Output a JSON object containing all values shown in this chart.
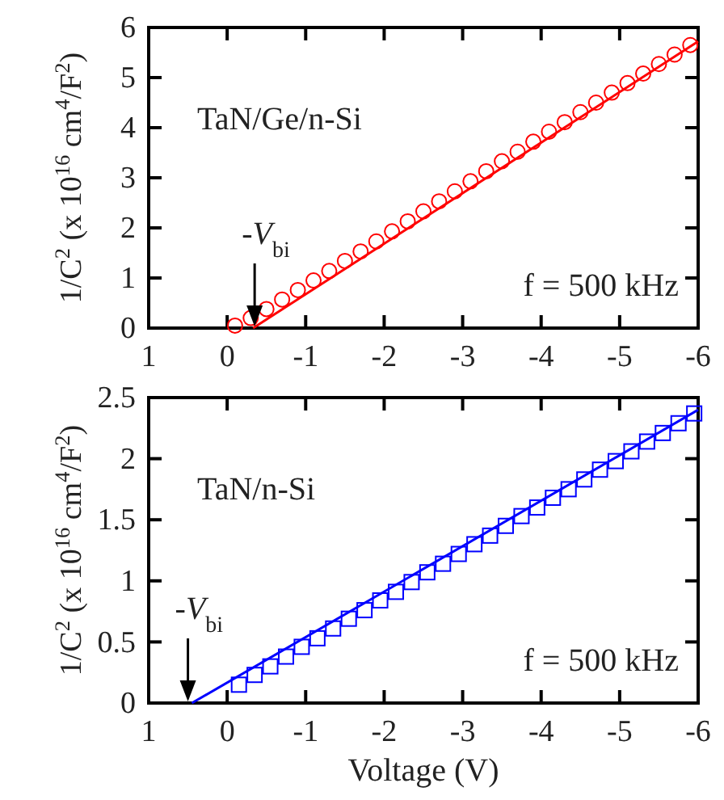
{
  "chart_data": [
    {
      "type": "scatter",
      "ylabel": "1/C$^{2}$ (x 10$^{16}$ cm$^{4}$/F$^{2}$)",
      "xlim": [
        1,
        -6
      ],
      "xticks": [
        1,
        0,
        -1,
        -2,
        -3,
        -4,
        -5,
        -6
      ],
      "ylim": [
        0,
        6
      ],
      "yticks": [
        0,
        1,
        2,
        3,
        4,
        5,
        6
      ],
      "grid": false,
      "annotations": [
        "TaN/Ge/n-Si",
        "f = 500 kHz",
        {
          "text": "-V$_{bi}$",
          "x": -0.35,
          "y": 0
        }
      ],
      "series": [
        {
          "type": "scatter",
          "marker": "circle",
          "color": "#ff0000",
          "x": [
            -0.1,
            -0.3,
            -0.5,
            -0.7,
            -0.9,
            -1.1,
            -1.3,
            -1.5,
            -1.7,
            -1.9,
            -2.1,
            -2.3,
            -2.5,
            -2.7,
            -2.9,
            -3.1,
            -3.3,
            -3.5,
            -3.7,
            -3.9,
            -4.1,
            -4.3,
            -4.5,
            -4.7,
            -4.9,
            -5.1,
            -5.3,
            -5.5,
            -5.7,
            -5.9
          ],
          "values": [
            0.05,
            0.2,
            0.38,
            0.57,
            0.76,
            0.95,
            1.14,
            1.34,
            1.53,
            1.73,
            1.93,
            2.13,
            2.33,
            2.53,
            2.73,
            2.93,
            3.13,
            3.33,
            3.52,
            3.72,
            3.92,
            4.11,
            4.31,
            4.5,
            4.7,
            4.89,
            5.08,
            5.27,
            5.46,
            5.65
          ]
        },
        {
          "type": "line",
          "marker": "none",
          "line_style": "solid",
          "color": "#ff0000",
          "x": [
            -0.33,
            -6
          ],
          "values": [
            0,
            5.72
          ]
        }
      ]
    },
    {
      "type": "scatter",
      "xlabel": "Voltage (V)",
      "ylabel": "1/C$^{2}$ (x 10$^{16}$ cm$^{4}$/F$^{2}$)",
      "xlim": [
        1,
        -6
      ],
      "xticks": [
        1,
        0,
        -1,
        -2,
        -3,
        -4,
        -5,
        -6
      ],
      "ylim": [
        0,
        2.5
      ],
      "yticks": [
        0,
        0.5,
        1,
        1.5,
        2,
        2.5
      ],
      "grid": false,
      "annotations": [
        "TaN/n-Si",
        "f = 500 kHz",
        {
          "text": "-V$_{bi}$",
          "x": 0.5,
          "y": 0
        }
      ],
      "series": [
        {
          "type": "scatter",
          "marker": "square",
          "color": "#0000ff",
          "x": [
            -0.15,
            -0.35,
            -0.55,
            -0.75,
            -0.95,
            -1.15,
            -1.35,
            -1.55,
            -1.75,
            -1.95,
            -2.15,
            -2.35,
            -2.55,
            -2.75,
            -2.95,
            -3.15,
            -3.35,
            -3.55,
            -3.75,
            -3.95,
            -4.15,
            -4.35,
            -4.55,
            -4.75,
            -4.95,
            -5.15,
            -5.35,
            -5.55,
            -5.75,
            -5.95
          ],
          "values": [
            0.15,
            0.23,
            0.3,
            0.38,
            0.46,
            0.53,
            0.61,
            0.69,
            0.76,
            0.84,
            0.91,
            0.99,
            1.07,
            1.14,
            1.22,
            1.3,
            1.37,
            1.45,
            1.53,
            1.6,
            1.68,
            1.75,
            1.83,
            1.91,
            1.98,
            2.06,
            2.14,
            2.21,
            2.29,
            2.37
          ]
        },
        {
          "type": "line",
          "marker": "none",
          "line_style": "solid",
          "color": "#0000ff",
          "x": [
            0.45,
            -6
          ],
          "values": [
            0,
            2.4
          ]
        }
      ]
    }
  ]
}
